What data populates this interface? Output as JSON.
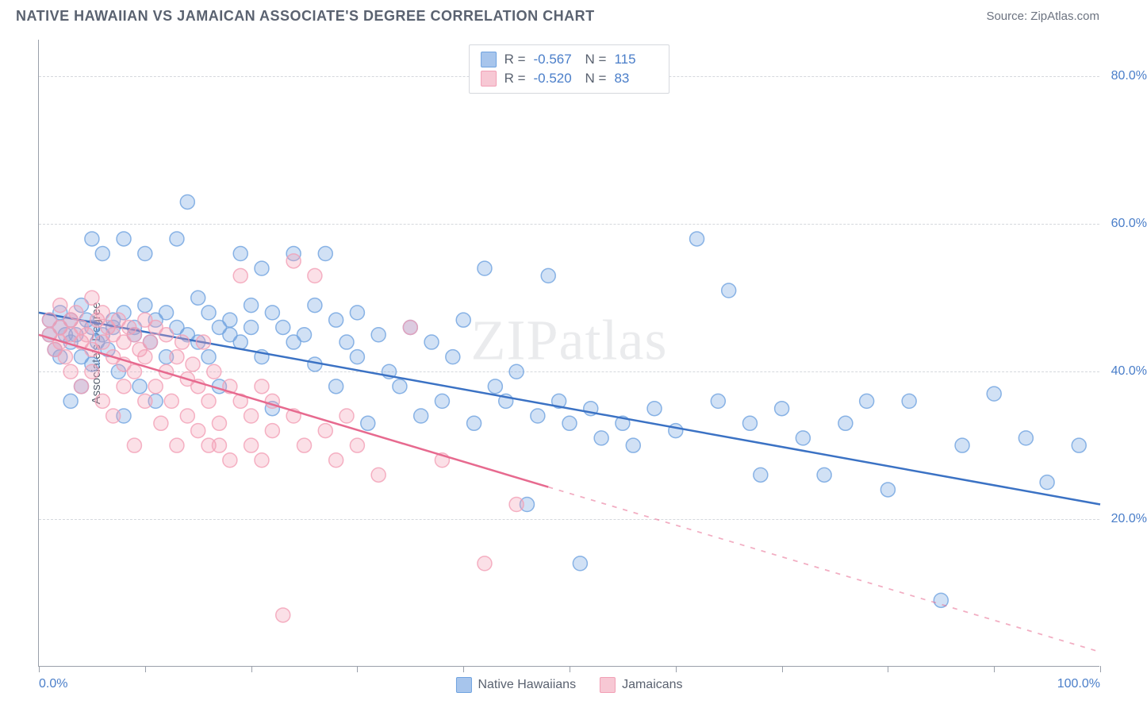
{
  "header": {
    "title": "NATIVE HAWAIIAN VS JAMAICAN ASSOCIATE'S DEGREE CORRELATION CHART",
    "source": "Source: ZipAtlas.com"
  },
  "watermark": "ZIPatlas",
  "chart": {
    "type": "scatter",
    "ylabel": "Associate's Degree",
    "xlim": [
      0,
      100
    ],
    "ylim": [
      0,
      85
    ],
    "background_color": "#ffffff",
    "grid_color": "#d5d8dd",
    "axis_color": "#9aa0aa",
    "tick_label_color": "#4a7ec9",
    "label_fontsize": 15,
    "tick_fontsize": 16,
    "title_fontsize": 18,
    "title_color": "#5a6270",
    "yticks": [
      20,
      40,
      60,
      80
    ],
    "ytick_labels": [
      "20.0%",
      "40.0%",
      "60.0%",
      "80.0%"
    ],
    "xticks": [
      0,
      10,
      20,
      30,
      40,
      50,
      60,
      70,
      80,
      90,
      100
    ],
    "xtick_labels_shown": {
      "0": "0.0%",
      "100": "100.0%"
    },
    "marker_radius": 9,
    "marker_fill_opacity": 0.32,
    "marker_stroke_opacity": 0.8,
    "line_width": 2.5,
    "series": [
      {
        "name": "Native Hawaiians",
        "color": "#6fa3e0",
        "line_color": "#3b72c4",
        "R": "-0.567",
        "N": "115",
        "regression": {
          "x1": 0,
          "y1": 48,
          "x2": 100,
          "y2": 22,
          "solid_until_x": 100
        },
        "points": [
          [
            1,
            45
          ],
          [
            1,
            47
          ],
          [
            1.5,
            43
          ],
          [
            2,
            46
          ],
          [
            2,
            42
          ],
          [
            2,
            48
          ],
          [
            2.5,
            45
          ],
          [
            3,
            44
          ],
          [
            3,
            47
          ],
          [
            3,
            36
          ],
          [
            3.5,
            45
          ],
          [
            4,
            49
          ],
          [
            4,
            42
          ],
          [
            4,
            38
          ],
          [
            4.5,
            47
          ],
          [
            5,
            46
          ],
          [
            5,
            41
          ],
          [
            5,
            58
          ],
          [
            5.5,
            44
          ],
          [
            6,
            45
          ],
          [
            6,
            56
          ],
          [
            6.5,
            43
          ],
          [
            7,
            46
          ],
          [
            7,
            47
          ],
          [
            7.5,
            40
          ],
          [
            8,
            48
          ],
          [
            8,
            58
          ],
          [
            8,
            34
          ],
          [
            9,
            46
          ],
          [
            9,
            45
          ],
          [
            9.5,
            38
          ],
          [
            10,
            49
          ],
          [
            10,
            56
          ],
          [
            10.5,
            44
          ],
          [
            11,
            47
          ],
          [
            11,
            36
          ],
          [
            12,
            48
          ],
          [
            12,
            42
          ],
          [
            13,
            46
          ],
          [
            13,
            58
          ],
          [
            14,
            45
          ],
          [
            14,
            63
          ],
          [
            15,
            50
          ],
          [
            15,
            44
          ],
          [
            16,
            42
          ],
          [
            16,
            48
          ],
          [
            17,
            46
          ],
          [
            17,
            38
          ],
          [
            18,
            47
          ],
          [
            18,
            45
          ],
          [
            19,
            56
          ],
          [
            19,
            44
          ],
          [
            20,
            49
          ],
          [
            20,
            46
          ],
          [
            21,
            42
          ],
          [
            21,
            54
          ],
          [
            22,
            48
          ],
          [
            22,
            35
          ],
          [
            23,
            46
          ],
          [
            24,
            56
          ],
          [
            24,
            44
          ],
          [
            25,
            45
          ],
          [
            26,
            41
          ],
          [
            26,
            49
          ],
          [
            27,
            56
          ],
          [
            28,
            38
          ],
          [
            28,
            47
          ],
          [
            29,
            44
          ],
          [
            30,
            42
          ],
          [
            30,
            48
          ],
          [
            31,
            33
          ],
          [
            32,
            45
          ],
          [
            33,
            40
          ],
          [
            34,
            38
          ],
          [
            35,
            46
          ],
          [
            36,
            34
          ],
          [
            37,
            44
          ],
          [
            38,
            36
          ],
          [
            39,
            42
          ],
          [
            40,
            47
          ],
          [
            41,
            33
          ],
          [
            42,
            54
          ],
          [
            43,
            38
          ],
          [
            44,
            36
          ],
          [
            45,
            40
          ],
          [
            46,
            22
          ],
          [
            47,
            34
          ],
          [
            48,
            53
          ],
          [
            49,
            36
          ],
          [
            50,
            33
          ],
          [
            51,
            14
          ],
          [
            52,
            35
          ],
          [
            53,
            31
          ],
          [
            55,
            33
          ],
          [
            56,
            30
          ],
          [
            58,
            35
          ],
          [
            60,
            32
          ],
          [
            62,
            58
          ],
          [
            64,
            36
          ],
          [
            65,
            51
          ],
          [
            67,
            33
          ],
          [
            68,
            26
          ],
          [
            70,
            35
          ],
          [
            72,
            31
          ],
          [
            74,
            26
          ],
          [
            76,
            33
          ],
          [
            78,
            36
          ],
          [
            80,
            24
          ],
          [
            82,
            36
          ],
          [
            85,
            9
          ],
          [
            87,
            30
          ],
          [
            90,
            37
          ],
          [
            93,
            31
          ],
          [
            95,
            25
          ],
          [
            98,
            30
          ]
        ]
      },
      {
        "name": "Jamaicans",
        "color": "#f29fb5",
        "line_color": "#e76a8f",
        "R": "-0.520",
        "N": "83",
        "regression": {
          "x1": 0,
          "y1": 45,
          "x2": 100,
          "y2": 2,
          "solid_until_x": 48
        },
        "points": [
          [
            1,
            45
          ],
          [
            1,
            47
          ],
          [
            1.5,
            43
          ],
          [
            2,
            46
          ],
          [
            2,
            49
          ],
          [
            2,
            44
          ],
          [
            2.5,
            42
          ],
          [
            3,
            47
          ],
          [
            3,
            45
          ],
          [
            3,
            40
          ],
          [
            3.5,
            48
          ],
          [
            4,
            44
          ],
          [
            4,
            46
          ],
          [
            4,
            38
          ],
          [
            4.5,
            45
          ],
          [
            5,
            50
          ],
          [
            5,
            43
          ],
          [
            5,
            40
          ],
          [
            5.5,
            47
          ],
          [
            6,
            44
          ],
          [
            6,
            48
          ],
          [
            6,
            36
          ],
          [
            6.5,
            46
          ],
          [
            7,
            42
          ],
          [
            7,
            45
          ],
          [
            7,
            34
          ],
          [
            7.5,
            47
          ],
          [
            8,
            41
          ],
          [
            8,
            44
          ],
          [
            8,
            38
          ],
          [
            8.5,
            46
          ],
          [
            9,
            40
          ],
          [
            9,
            45
          ],
          [
            9,
            30
          ],
          [
            9.5,
            43
          ],
          [
            10,
            47
          ],
          [
            10,
            36
          ],
          [
            10,
            42
          ],
          [
            10.5,
            44
          ],
          [
            11,
            38
          ],
          [
            11,
            46
          ],
          [
            11.5,
            33
          ],
          [
            12,
            40
          ],
          [
            12,
            45
          ],
          [
            12.5,
            36
          ],
          [
            13,
            42
          ],
          [
            13,
            30
          ],
          [
            13.5,
            44
          ],
          [
            14,
            39
          ],
          [
            14,
            34
          ],
          [
            14.5,
            41
          ],
          [
            15,
            32
          ],
          [
            15,
            38
          ],
          [
            15.5,
            44
          ],
          [
            16,
            30
          ],
          [
            16,
            36
          ],
          [
            16.5,
            40
          ],
          [
            17,
            33
          ],
          [
            17,
            30
          ],
          [
            18,
            38
          ],
          [
            18,
            28
          ],
          [
            19,
            36
          ],
          [
            19,
            53
          ],
          [
            20,
            30
          ],
          [
            20,
            34
          ],
          [
            21,
            38
          ],
          [
            21,
            28
          ],
          [
            22,
            32
          ],
          [
            22,
            36
          ],
          [
            23,
            7
          ],
          [
            24,
            55
          ],
          [
            24,
            34
          ],
          [
            25,
            30
          ],
          [
            26,
            53
          ],
          [
            27,
            32
          ],
          [
            28,
            28
          ],
          [
            29,
            34
          ],
          [
            30,
            30
          ],
          [
            32,
            26
          ],
          [
            35,
            46
          ],
          [
            38,
            28
          ],
          [
            42,
            14
          ],
          [
            45,
            22
          ]
        ]
      }
    ]
  },
  "legend": {
    "items": [
      {
        "label": "Native Hawaiians",
        "color": "#a7c5ec",
        "border": "#6fa3e0"
      },
      {
        "label": "Jamaicans",
        "color": "#f7c8d4",
        "border": "#f29fb5"
      }
    ]
  }
}
